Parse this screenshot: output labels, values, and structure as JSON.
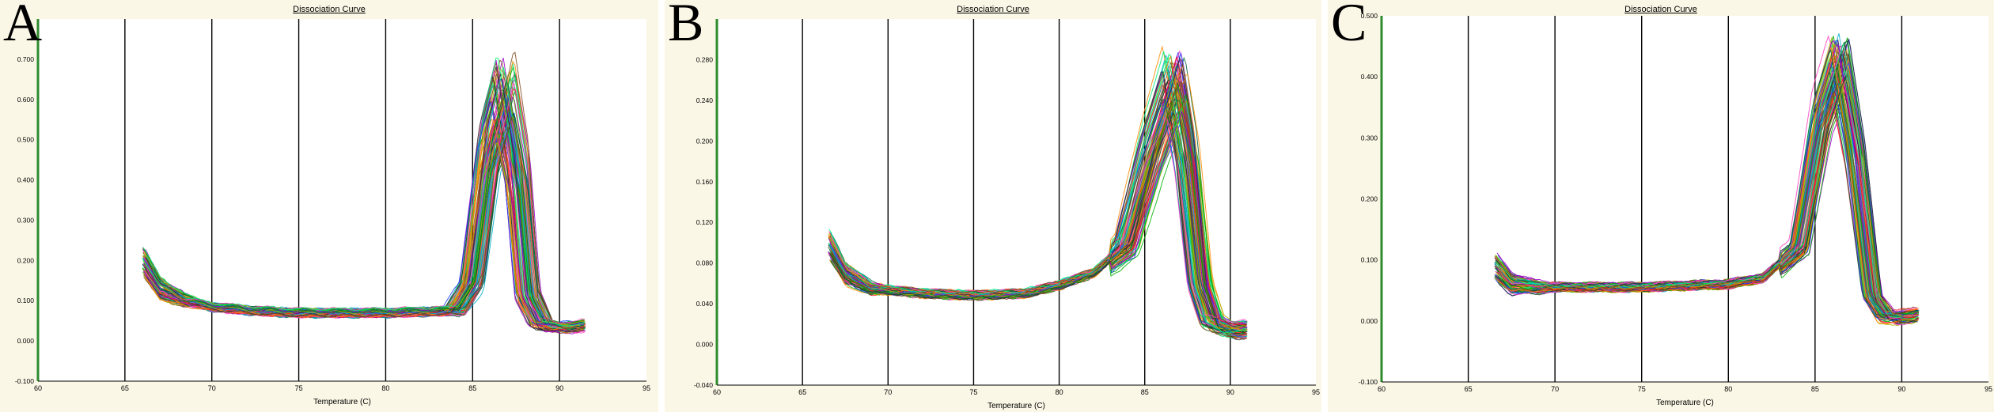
{
  "panels": [
    {
      "letter": "A",
      "title": "Dissociation Curve"
    },
    {
      "letter": "B",
      "title": "Dissociation Curve"
    },
    {
      "letter": "C",
      "title": "Dissociation Curve"
    }
  ],
  "chart_data": [
    {
      "type": "line",
      "title": "Dissociation Curve",
      "xlabel": "Temperature (C)",
      "ylabel": "",
      "xlim": [
        60,
        95
      ],
      "ylim": [
        -0.1,
        0.8
      ],
      "xticks": [
        60,
        65,
        70,
        75,
        80,
        85,
        90,
        95
      ],
      "yticks": [
        -0.1,
        0.0,
        0.1,
        0.2,
        0.3,
        0.4,
        0.5,
        0.6,
        0.7
      ],
      "ytick_labels": [
        "-0.100",
        "0.000",
        "0.100",
        "0.200",
        "0.300",
        "0.400",
        "0.500",
        "0.600",
        "0.700"
      ],
      "grid": "vertical",
      "curve_count": 96,
      "profile": {
        "x": [
          66.0,
          67.0,
          68.5,
          70.0,
          72.5,
          75.0,
          80.0,
          84.0,
          85.0,
          86.0,
          86.8,
          87.6,
          88.2,
          89.0,
          90.0,
          91.5
        ],
        "y": [
          0.2,
          0.13,
          0.1,
          0.085,
          0.075,
          0.07,
          0.07,
          0.075,
          0.15,
          0.52,
          0.66,
          0.45,
          0.12,
          0.04,
          0.03,
          0.035
        ]
      },
      "peak_temperature_range": [
        86.0,
        87.5
      ],
      "peak_height_range": [
        0.5,
        0.72
      ]
    },
    {
      "type": "line",
      "title": "Dissociation Curve",
      "xlabel": "Temperature (C)",
      "ylabel": "",
      "xlim": [
        60,
        95
      ],
      "ylim": [
        -0.04,
        0.32
      ],
      "xticks": [
        60,
        65,
        70,
        75,
        80,
        85,
        90,
        95
      ],
      "yticks": [
        -0.04,
        0.0,
        0.04,
        0.08,
        0.12,
        0.16,
        0.2,
        0.24,
        0.28
      ],
      "ytick_labels": [
        "-0.040",
        "0.000",
        "0.040",
        "0.080",
        "0.120",
        "0.160",
        "0.200",
        "0.240",
        "0.280"
      ],
      "grid": "vertical",
      "curve_count": 96,
      "profile": {
        "x": [
          66.5,
          67.5,
          69.0,
          72.0,
          75.0,
          78.0,
          80.0,
          82.0,
          84.0,
          85.5,
          86.8,
          87.5,
          88.3,
          89.0,
          90.0,
          91.0
        ],
        "y": [
          0.1,
          0.07,
          0.055,
          0.05,
          0.048,
          0.05,
          0.058,
          0.07,
          0.1,
          0.2,
          0.27,
          0.2,
          0.06,
          0.02,
          0.012,
          0.012
        ]
      },
      "peak_temperature_range": [
        86.0,
        87.5
      ],
      "peak_height_range": [
        0.22,
        0.29
      ]
    },
    {
      "type": "line",
      "title": "Dissociation Curve",
      "xlabel": "Temperature (C)",
      "ylabel": "",
      "xlim": [
        60,
        95
      ],
      "ylim": [
        -0.1,
        0.5
      ],
      "xticks": [
        60,
        65,
        70,
        75,
        80,
        85,
        90,
        95
      ],
      "yticks": [
        -0.1,
        0.0,
        0.1,
        0.2,
        0.3,
        0.4,
        0.5
      ],
      "ytick_labels": [
        "-0.100",
        "0.000",
        "0.100",
        "0.200",
        "0.300",
        "0.400",
        "0.500"
      ],
      "grid": "vertical",
      "curve_count": 96,
      "profile": {
        "x": [
          66.5,
          67.5,
          69.0,
          72.0,
          75.0,
          78.0,
          80.0,
          82.0,
          84.0,
          85.3,
          86.3,
          87.2,
          88.2,
          89.0,
          90.0,
          91.0
        ],
        "y": [
          0.09,
          0.06,
          0.055,
          0.055,
          0.055,
          0.058,
          0.06,
          0.07,
          0.12,
          0.34,
          0.43,
          0.28,
          0.04,
          0.005,
          0.005,
          0.01
        ]
      },
      "peak_temperature_range": [
        85.8,
        87.0
      ],
      "peak_height_range": [
        0.38,
        0.47
      ]
    }
  ],
  "colors": {
    "background": "#fbf7e6",
    "plot_area": "#ffffff",
    "grid": "#000000",
    "y_axis_line": "#2e8b2e",
    "curve_palette": [
      "#1f3fff",
      "#ff2020",
      "#00b000",
      "#9a00c8",
      "#00aacc",
      "#ff8800",
      "#2a2a2a",
      "#b0b000",
      "#ff40c0",
      "#006633",
      "#00ee77",
      "#7f4b20"
    ]
  }
}
